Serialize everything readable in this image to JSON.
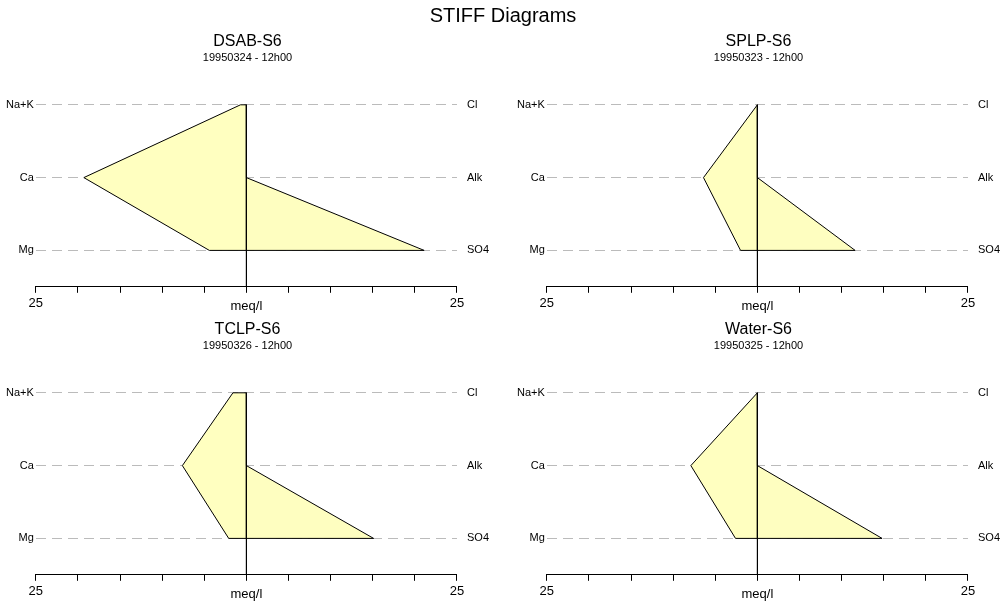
{
  "chart_data": [
    {
      "type": "area",
      "title": "DSAB-S6",
      "subtitle": "19950324 - 12h00",
      "annotations": [
        "STIFF Diagrams"
      ],
      "orientation": "horizontal",
      "xlabel": "meq/l",
      "categories": [
        "Na+K",
        "Ca",
        "Mg"
      ],
      "y2_categories": [
        "Cl",
        "Alk",
        "SO4"
      ],
      "series": [
        {
          "color": "#ffffc0",
          "values": [
            -0.7,
            -19.3,
            -4.4
          ]
        },
        {
          "color": "#fefec0",
          "values": [
            0,
            0,
            21.1
          ]
        }
      ],
      "xlim": [
        -25,
        25
      ],
      "xticks": [
        {
          "value": -25,
          "label": "25"
        },
        {
          "value": -20,
          "label": null
        },
        {
          "value": -15,
          "label": null
        },
        {
          "value": -10,
          "label": null
        },
        {
          "value": -5,
          "label": null
        },
        {
          "value": 0,
          "label": null
        },
        {
          "value": 5,
          "label": null
        },
        {
          "value": 10,
          "label": null
        },
        {
          "value": 15,
          "label": null
        },
        {
          "value": 20,
          "label": null
        },
        {
          "value": 25,
          "label": "25"
        }
      ],
      "ref_lines": [
        {
          "axis": "x",
          "value": 0,
          "color": "#000000"
        }
      ],
      "grid": "y",
      "legend": false,
      "marker": "none"
    },
    {
      "type": "area",
      "title": "SPLP-S6",
      "subtitle": "19950323 - 12h00",
      "orientation": "horizontal",
      "xlabel": "meq/l",
      "categories": [
        "Na+K",
        "Ca",
        "Mg"
      ],
      "y2_categories": [
        "Cl",
        "Alk",
        "SO4"
      ],
      "series": [
        {
          "color": "#ffffc0",
          "values": [
            0,
            -6.4,
            -2.0
          ]
        },
        {
          "color": "#fefec0",
          "values": [
            0,
            0,
            11.6
          ]
        }
      ],
      "xlim": [
        -25,
        25
      ],
      "xticks": [
        {
          "value": -25,
          "label": "25"
        },
        {
          "value": -20,
          "label": null
        },
        {
          "value": -15,
          "label": null
        },
        {
          "value": -10,
          "label": null
        },
        {
          "value": -5,
          "label": null
        },
        {
          "value": 0,
          "label": null
        },
        {
          "value": 5,
          "label": null
        },
        {
          "value": 10,
          "label": null
        },
        {
          "value": 15,
          "label": null
        },
        {
          "value": 20,
          "label": null
        },
        {
          "value": 25,
          "label": "25"
        }
      ],
      "ref_lines": [
        {
          "axis": "x",
          "value": 0,
          "color": "#000000"
        }
      ],
      "grid": "y",
      "legend": false,
      "marker": "none"
    },
    {
      "type": "area",
      "title": "TCLP-S6",
      "subtitle": "19950326 - 12h00",
      "orientation": "horizontal",
      "xlabel": "meq/l",
      "categories": [
        "Na+K",
        "Ca",
        "Mg"
      ],
      "y2_categories": [
        "Cl",
        "Alk",
        "SO4"
      ],
      "series": [
        {
          "color": "#ffffc0",
          "values": [
            -1.6,
            -7.6,
            -2.1
          ]
        },
        {
          "color": "#fefec0",
          "values": [
            0,
            0,
            15.1
          ]
        }
      ],
      "xlim": [
        -25,
        25
      ],
      "xticks": [
        {
          "value": -25,
          "label": "25"
        },
        {
          "value": -20,
          "label": null
        },
        {
          "value": -15,
          "label": null
        },
        {
          "value": -10,
          "label": null
        },
        {
          "value": -5,
          "label": null
        },
        {
          "value": 0,
          "label": null
        },
        {
          "value": 5,
          "label": null
        },
        {
          "value": 10,
          "label": null
        },
        {
          "value": 15,
          "label": null
        },
        {
          "value": 20,
          "label": null
        },
        {
          "value": 25,
          "label": "25"
        }
      ],
      "ref_lines": [
        {
          "axis": "x",
          "value": 0,
          "color": "#000000"
        }
      ],
      "grid": "y",
      "legend": false,
      "marker": "none"
    },
    {
      "type": "area",
      "title": "Water-S6",
      "subtitle": "19950325 - 12h00",
      "orientation": "horizontal",
      "xlabel": "meq/l",
      "categories": [
        "Na+K",
        "Ca",
        "Mg"
      ],
      "y2_categories": [
        "Cl",
        "Alk",
        "SO4"
      ],
      "series": [
        {
          "color": "#ffffc0",
          "values": [
            0,
            -7.9,
            -2.6
          ]
        },
        {
          "color": "#fefec0",
          "values": [
            0,
            0,
            14.8
          ]
        }
      ],
      "xlim": [
        -25,
        25
      ],
      "xticks": [
        {
          "value": -25,
          "label": "25"
        },
        {
          "value": -20,
          "label": null
        },
        {
          "value": -15,
          "label": null
        },
        {
          "value": -10,
          "label": null
        },
        {
          "value": -5,
          "label": null
        },
        {
          "value": 0,
          "label": null
        },
        {
          "value": 5,
          "label": null
        },
        {
          "value": 10,
          "label": null
        },
        {
          "value": 15,
          "label": null
        },
        {
          "value": 20,
          "label": null
        },
        {
          "value": 25,
          "label": "25"
        }
      ],
      "ref_lines": [
        {
          "axis": "x",
          "value": 0,
          "color": "#000000"
        }
      ],
      "grid": "y",
      "legend": false,
      "marker": "none"
    }
  ]
}
